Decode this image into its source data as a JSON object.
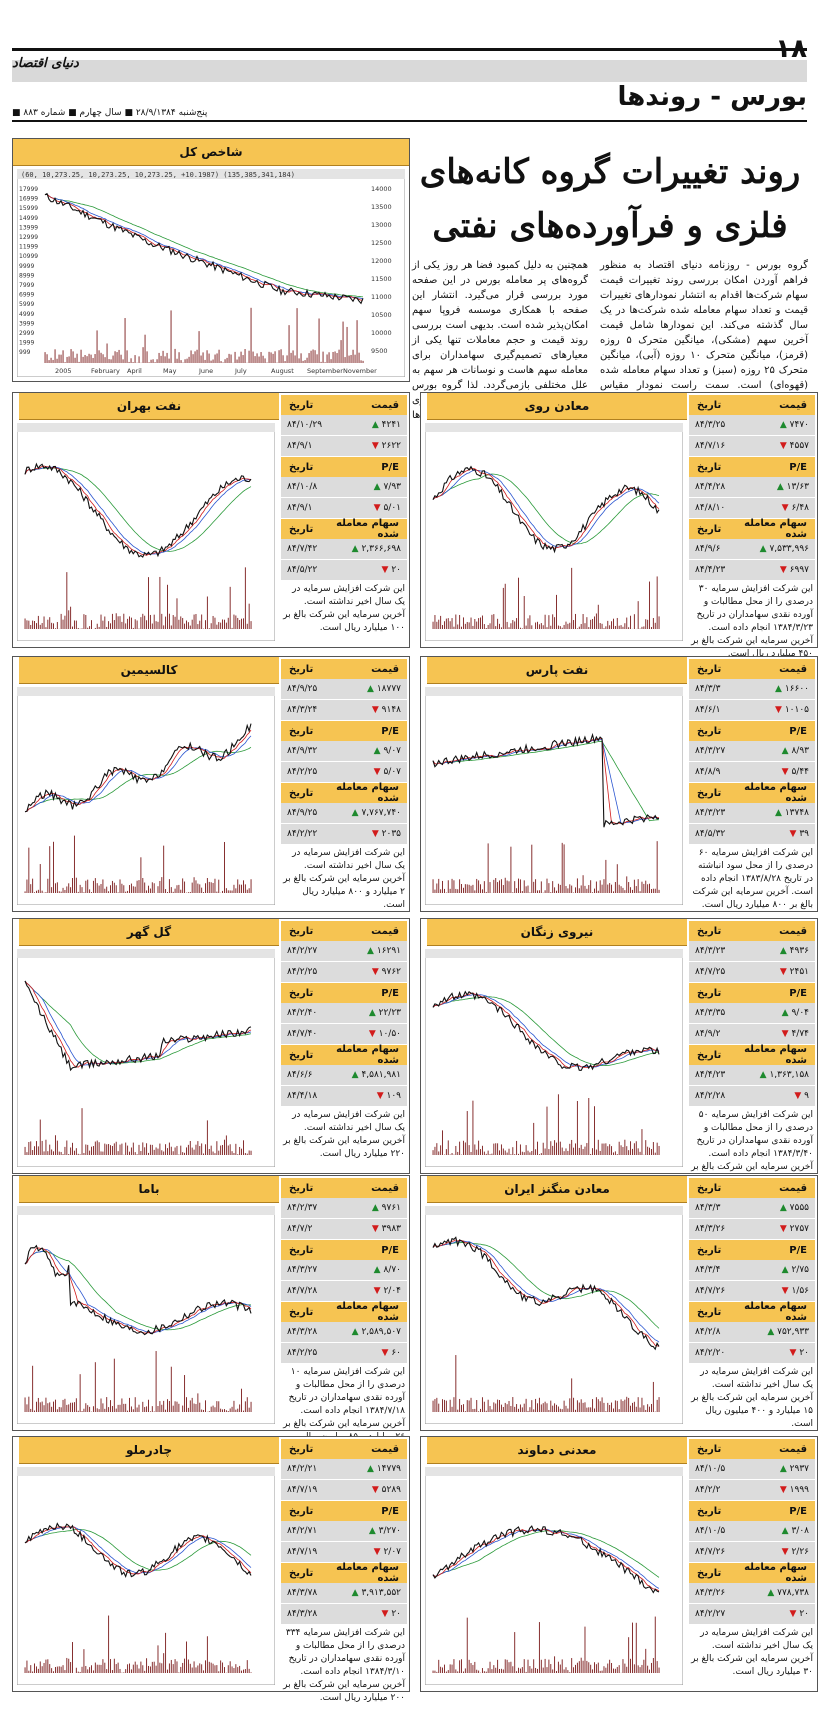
{
  "header": {
    "page_number": "۱۸",
    "logo": "دنیای اقتصاد",
    "section": "بورس - روندها",
    "issue_line": "■ پنج‌شنبه ۲۸/۹/۱۳۸۴ ■ سال چهارم ■ شماره ۸۸۳"
  },
  "headline": "روند تغییرات گروه کانه‌های فلزی و فرآورده‌های نفتی",
  "intro": {
    "right": "گروه بورس - روزنامه دنیای اقتصاد به منظور فراهم آوردن امکان بررسی روند تغییرات قیمت سهام شرکت‌ها اقدام به انتشار نمودارهای تغییرات قیمت و تعداد سهام معامله شده شرکت‌ها در یک سال گذشته می‌کند. این نمودارها شامل قیمت آخرین سهم (مشکی)، میانگین متحرک ۵ روزه (قرمز)، میانگین متحرک ۱۰ روزه (آبی)، میانگین متحرک ۲۵ روزه (سبز) و تعداد سهام معامله شده (قهوه‌ای) است. سمت راست نمودار مقیاس قیمت و سمت چپ نمودار مقیاس تعداد سهام معامله شده است.",
    "left": "همچنین به دلیل کمبود فضا هر روز یکی از گروه‌های پر معامله بورس در این صفحه مورد بررسی قرار می‌گیرد. انتشار این صفحه با همکاری موسسه فروپا سهم امکان‌پذیر شده است. بدیهی است بررسی روند قیمت و حجم معاملات تنها یکی از معیارهای تصمیم‌گیری سهامداران برای معامله سهم هاست و نوسانات هر سهم به علل مختلفی بازمی‌گردد. لذا گروه بورس هیچ گونه مسوولیتی در برابر تصمیم‌گیری سهامداران عزیز بر اساس این نمودارها نمی‌پذیرد."
  },
  "index_panel": {
    "title": "شاخص کل",
    "caption": "(60, 10,273.25, 10,273.25, 10,273.25, +10.1987)     (135,385,341,184)",
    "x_labels": [
      "2005",
      "February",
      "April",
      "May",
      "June",
      "July",
      "August",
      "September",
      "November"
    ],
    "y_right": [
      "14000",
      "13500",
      "13000",
      "12500",
      "12000",
      "11500",
      "11000",
      "10500",
      "10000",
      "9500"
    ],
    "y_left": [
      "17999",
      "16999",
      "15999",
      "14999",
      "13999",
      "12999",
      "11999",
      "10999",
      "9999",
      "8999",
      "7999",
      "6999",
      "5999",
      "4999",
      "3999",
      "2999",
      "1999",
      "999"
    ]
  },
  "stat_labels": {
    "price": "قیمت",
    "date": "تاریخ",
    "pe": "P/E",
    "volume": "سهام معامله شده"
  },
  "panels": [
    {
      "title": "معادن روی",
      "desc": "این شرکت افزایش سرمایه ۳۰ درصدی را از محل مطالبات و آورده نقدی سهامداران در تاریخ ۱۳۸۴/۳/۲۳ انجام داده است. آخرین سرمایه این شرکت بالغ بر ۴۵۰ میلیارد ریال است.",
      "rows": [
        {
          "group": "price",
          "v": "۷۴۷۰",
          "d": "۸۴/۳/۲۵",
          "dir": "up"
        },
        {
          "group": "price",
          "v": "۴۵۵۷",
          "d": "۸۴/۷/۱۶",
          "dir": "down"
        },
        {
          "group": "pe",
          "v": "۱۳/۶۳",
          "d": "۸۴/۴/۲۸",
          "dir": "up"
        },
        {
          "group": "pe",
          "v": "۶/۴۸",
          "d": "۸۴/۸/۱۰",
          "dir": "down"
        },
        {
          "group": "volume",
          "v": "۷,۵۳۳,۹۹۶",
          "d": "۸۴/۹/۶",
          "dir": "up"
        },
        {
          "group": "volume",
          "v": "۶۹۹۷",
          "d": "۸۴/۴/۲۳",
          "dir": "down"
        }
      ]
    },
    {
      "title": "نفت بهران",
      "desc": "این شرکت افزایش سرمایه در یک سال اخیر نداشته است. آخرین سرمایه این شرکت بالغ بر ۱۰۰ میلیارد ریال است.",
      "rows": [
        {
          "group": "price",
          "v": "۴۲۴۱",
          "d": "۸۴/۱۰/۲۹",
          "dir": "up"
        },
        {
          "group": "price",
          "v": "۲۶۲۲",
          "d": "۸۴/۹/۱",
          "dir": "down"
        },
        {
          "group": "pe",
          "v": "۷/۹۳",
          "d": "۸۴/۱۰/۸",
          "dir": "up"
        },
        {
          "group": "pe",
          "v": "۵/۰۱",
          "d": "۸۴/۹/۱",
          "dir": "down"
        },
        {
          "group": "volume",
          "v": "۲,۳۶۶,۶۹۸",
          "d": "۸۴/۷/۴۲",
          "dir": "up"
        },
        {
          "group": "volume",
          "v": "۲۰",
          "d": "۸۴/۵/۲۲",
          "dir": "down"
        }
      ]
    },
    {
      "title": "نفت پارس",
      "desc": "این شرکت افزایش سرمایه ۶۰ درصدی را از محل سود انباشته در تاریخ ۱۳۸۳/۸/۲۸ انجام داده است. آخرین سرمایه این شرکت بالغ بر ۸۰۰ میلیارد ریال است.",
      "rows": [
        {
          "group": "price",
          "v": "۱۶۶۰۰",
          "d": "۸۴/۳/۳",
          "dir": "up"
        },
        {
          "group": "price",
          "v": "۱۰۱۰۵",
          "d": "۸۴/۶/۱",
          "dir": "down"
        },
        {
          "group": "pe",
          "v": "۸/۹۳",
          "d": "۸۴/۳/۲۷",
          "dir": "up"
        },
        {
          "group": "pe",
          "v": "۵/۴۴",
          "d": "۸۴/۸/۹",
          "dir": "down"
        },
        {
          "group": "volume",
          "v": "۱۳۷۴۸",
          "d": "۸۴/۳/۲۳",
          "dir": "up"
        },
        {
          "group": "volume",
          "v": "۳۹",
          "d": "۸۴/۵/۳۲",
          "dir": "down"
        }
      ]
    },
    {
      "title": "کالسیمین",
      "desc": "این شرکت افزایش سرمایه در یک سال اخیر نداشته است. آخرین سرمایه این شرکت بالغ بر ۲ میلیارد و ۸۰۰ میلیارد ریال است.",
      "rows": [
        {
          "group": "price",
          "v": "۱۸۷۷۷",
          "d": "۸۴/۹/۲۵",
          "dir": "up"
        },
        {
          "group": "price",
          "v": "۹۱۴۸",
          "d": "۸۴/۳/۲۴",
          "dir": "down"
        },
        {
          "group": "pe",
          "v": "۹/۰۷",
          "d": "۸۴/۹/۳۲",
          "dir": "up"
        },
        {
          "group": "pe",
          "v": "۵/۰۷",
          "d": "۸۴/۲/۲۵",
          "dir": "down"
        },
        {
          "group": "volume",
          "v": "۷,۷۶۷,۷۴۰",
          "d": "۸۴/۹/۲۵",
          "dir": "up"
        },
        {
          "group": "volume",
          "v": "۲۰۳۵",
          "d": "۸۴/۲/۲۲",
          "dir": "down"
        }
      ]
    },
    {
      "title": "نیروی زنگان",
      "desc": "این شرکت افزایش سرمایه ۵۰ درصدی را از محل مطالبات و آورده نقدی سهامداران در تاریخ ۱۳۸۴/۳/۴۰ انجام داده است. آخرین سرمایه این شرکت بالغ بر ۳۰ میلیارد ریال است.",
      "rows": [
        {
          "group": "price",
          "v": "۴۹۳۶",
          "d": "۸۴/۳/۲۳",
          "dir": "up"
        },
        {
          "group": "price",
          "v": "۲۴۵۱",
          "d": "۸۴/۷/۲۵",
          "dir": "down"
        },
        {
          "group": "pe",
          "v": "۹/۰۴",
          "d": "۸۴/۳/۳۵",
          "dir": "up"
        },
        {
          "group": "pe",
          "v": "۴/۷۴",
          "d": "۸۴/۹/۲",
          "dir": "down"
        },
        {
          "group": "volume",
          "v": "۱,۳۶۳,۱۵۸",
          "d": "۸۴/۴/۲۳",
          "dir": "up"
        },
        {
          "group": "volume",
          "v": "۹",
          "d": "۸۴/۲/۲۸",
          "dir": "down"
        }
      ]
    },
    {
      "title": "گل گهر",
      "desc": "این شرکت افزایش سرمایه در یک سال اخیر نداشته است. آخرین سرمایه این شرکت بالغ بر ۲۲۰ میلیارد ریال است.",
      "rows": [
        {
          "group": "price",
          "v": "۱۶۲۹۱",
          "d": "۸۴/۲/۲۷",
          "dir": "up"
        },
        {
          "group": "price",
          "v": "۹۷۶۲",
          "d": "۸۴/۲/۲۵",
          "dir": "down"
        },
        {
          "group": "pe",
          "v": "۲۲/۲۳",
          "d": "۸۴/۲/۴۰",
          "dir": "up"
        },
        {
          "group": "pe",
          "v": "۱۰/۵۰",
          "d": "۸۴/۷/۴۰",
          "dir": "down"
        },
        {
          "group": "volume",
          "v": "۴,۵۸۱,۹۸۱",
          "d": "۸۴/۶/۶",
          "dir": "up"
        },
        {
          "group": "volume",
          "v": "۱۰۹",
          "d": "۸۴/۴/۱۸",
          "dir": "down"
        }
      ]
    },
    {
      "title": "معادن منگنز ایران",
      "desc": "این شرکت افزایش سرمایه در یک سال اخیر نداشته است. آخرین سرمایه این شرکت بالغ بر ۱۵ میلیارد و ۴۰۰ میلیون ریال است.",
      "rows": [
        {
          "group": "price",
          "v": "۷۵۵۵",
          "d": "۸۴/۳/۳",
          "dir": "up"
        },
        {
          "group": "price",
          "v": "۲۷۵۷",
          "d": "۸۴/۳/۲۶",
          "dir": "down"
        },
        {
          "group": "pe",
          "v": "۲/۷۵",
          "d": "۸۴/۳/۴",
          "dir": "up"
        },
        {
          "group": "pe",
          "v": "۱/۵۶",
          "d": "۸۴/۷/۲۶",
          "dir": "down"
        },
        {
          "group": "volume",
          "v": "۷۵۲,۹۳۳",
          "d": "۸۴/۲/۸",
          "dir": "up"
        },
        {
          "group": "volume",
          "v": "۲۰",
          "d": "۸۴/۲/۲۰",
          "dir": "down"
        }
      ]
    },
    {
      "title": "باما",
      "desc": "این شرکت افزایش سرمایه ۱۰ درصدی را از محل مطالبات و آورده نقدی سهامداران در تاریخ ۱۳۸۴/۷/۱۸ انجام داده است. آخرین سرمایه این شرکت بالغ بر ۲۶ میلیارد و ۸۵ میلیون ریال است.",
      "rows": [
        {
          "group": "price",
          "v": "۹۷۶۱",
          "d": "۸۴/۲/۳۷",
          "dir": "up"
        },
        {
          "group": "price",
          "v": "۳۹۸۳",
          "d": "۸۴/۷/۲",
          "dir": "down"
        },
        {
          "group": "pe",
          "v": "۸/۷۰",
          "d": "۸۴/۳/۲۷",
          "dir": "up"
        },
        {
          "group": "pe",
          "v": "۲/۰۴",
          "d": "۸۴/۷/۲۸",
          "dir": "down"
        },
        {
          "group": "volume",
          "v": "۲,۵۸۹,۵۰۷",
          "d": "۸۴/۳/۲۸",
          "dir": "up"
        },
        {
          "group": "volume",
          "v": "۶۰",
          "d": "۸۴/۲/۲۵",
          "dir": "down"
        }
      ]
    },
    {
      "title": "معدنی دماوند",
      "desc": "این شرکت افزایش سرمایه در یک سال اخیر نداشته است. آخرین سرمایه این شرکت بالغ بر ۳۰ میلیارد ریال است.",
      "rows": [
        {
          "group": "price",
          "v": "۲۹۳۷",
          "d": "۸۴/۱۰/۵",
          "dir": "up"
        },
        {
          "group": "price",
          "v": "۱۹۹۹",
          "d": "۸۴/۲/۲",
          "dir": "down"
        },
        {
          "group": "pe",
          "v": "۳/۰۸",
          "d": "۸۴/۱۰/۵",
          "dir": "up"
        },
        {
          "group": "pe",
          "v": "۲/۲۶",
          "d": "۸۴/۷/۲۶",
          "dir": "down"
        },
        {
          "group": "volume",
          "v": "۷۷۸,۷۳۸",
          "d": "۸۴/۳/۲۶",
          "dir": "up"
        },
        {
          "group": "volume",
          "v": "۲۰",
          "d": "۸۴/۲/۲۷",
          "dir": "down"
        }
      ]
    },
    {
      "title": "چادرملو",
      "desc": "این شرکت افزایش سرمایه ۳۳۴ درصدی را از محل مطالبات و آورده نقدی سهامداران در تاریخ ۱۳۸۴/۳/۱۰ انجام داده است. آخرین سرمایه این شرکت بالغ بر ۲۰۰ میلیارد ریال است.",
      "rows": [
        {
          "group": "price",
          "v": "۱۴۷۷۹",
          "d": "۸۴/۲/۲۱",
          "dir": "up"
        },
        {
          "group": "price",
          "v": "۵۲۸۹",
          "d": "۸۴/۷/۱۹",
          "dir": "down"
        },
        {
          "group": "pe",
          "v": "۳/۲۷۰",
          "d": "۸۴/۲/۷۱",
          "dir": "up"
        },
        {
          "group": "pe",
          "v": "۲/۰۷",
          "d": "۸۴/۷/۱۹",
          "dir": "down"
        },
        {
          "group": "volume",
          "v": "۳,۹۱۳,۵۵۲",
          "d": "۸۴/۳/۷۸",
          "dir": "up"
        },
        {
          "group": "volume",
          "v": "۲۰",
          "d": "۸۴/۳/۲۸",
          "dir": "down"
        }
      ]
    }
  ],
  "colors": {
    "accent": "#f6c452",
    "up": "#1e8a2e",
    "down": "#d21c1c",
    "volume": "#7a1a1a",
    "ma5": "#d21c1c",
    "ma10": "#2a55d0",
    "ma25": "#2a9a3a"
  }
}
